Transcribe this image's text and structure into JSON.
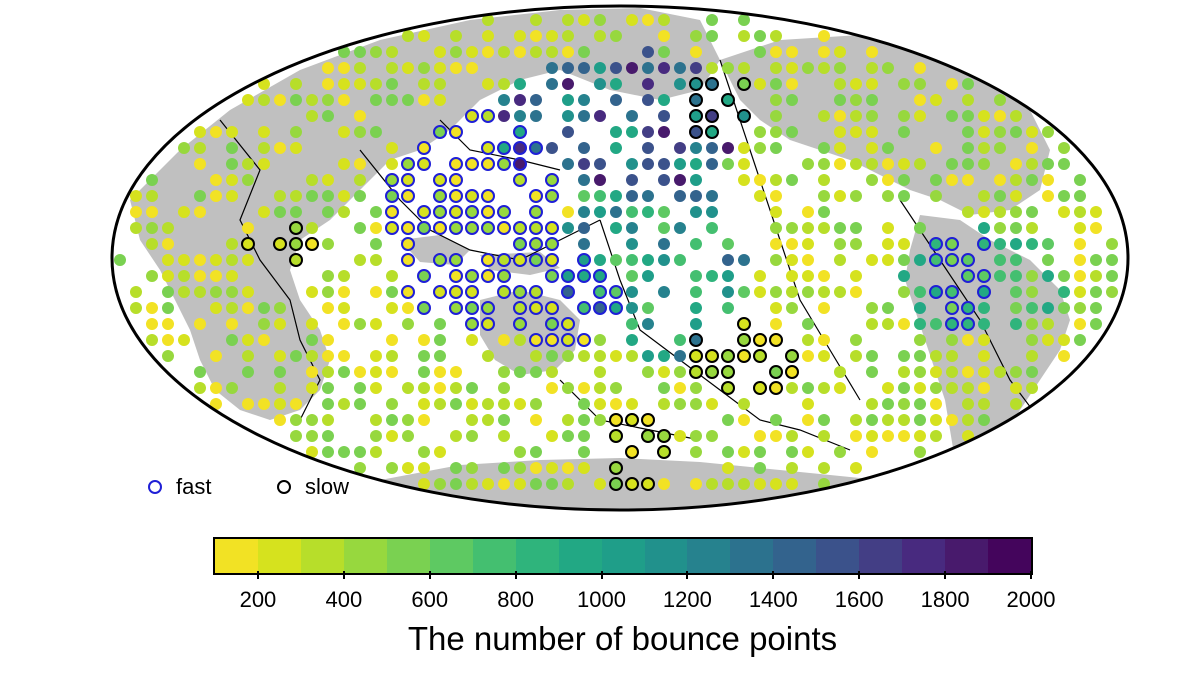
{
  "legend": {
    "fast": {
      "label": "fast",
      "color": "#1f1fd6"
    },
    "slow": {
      "label": "slow",
      "color": "#000000"
    }
  },
  "colorbar": {
    "title": "The number of bounce points",
    "min": 100,
    "max": 2000,
    "step": 100,
    "ticks": [
      "200",
      "400",
      "600",
      "800",
      "1000",
      "1200",
      "1400",
      "1600",
      "1800",
      "2000"
    ],
    "colors": [
      "#f2e224",
      "#d6e21e",
      "#b7de2a",
      "#97d83e",
      "#7ad151",
      "#5ec962",
      "#44bf70",
      "#2fb47c",
      "#22a884",
      "#1f9e89",
      "#21918c",
      "#26828e",
      "#2c728e",
      "#33638d",
      "#3b528b",
      "#433e85",
      "#482a7f",
      "#481a6c",
      "#44055c"
    ]
  },
  "map": {
    "projection": "mollweide",
    "land_color": "#c0c0c0",
    "ocean_color": "#ffffff"
  }
}
